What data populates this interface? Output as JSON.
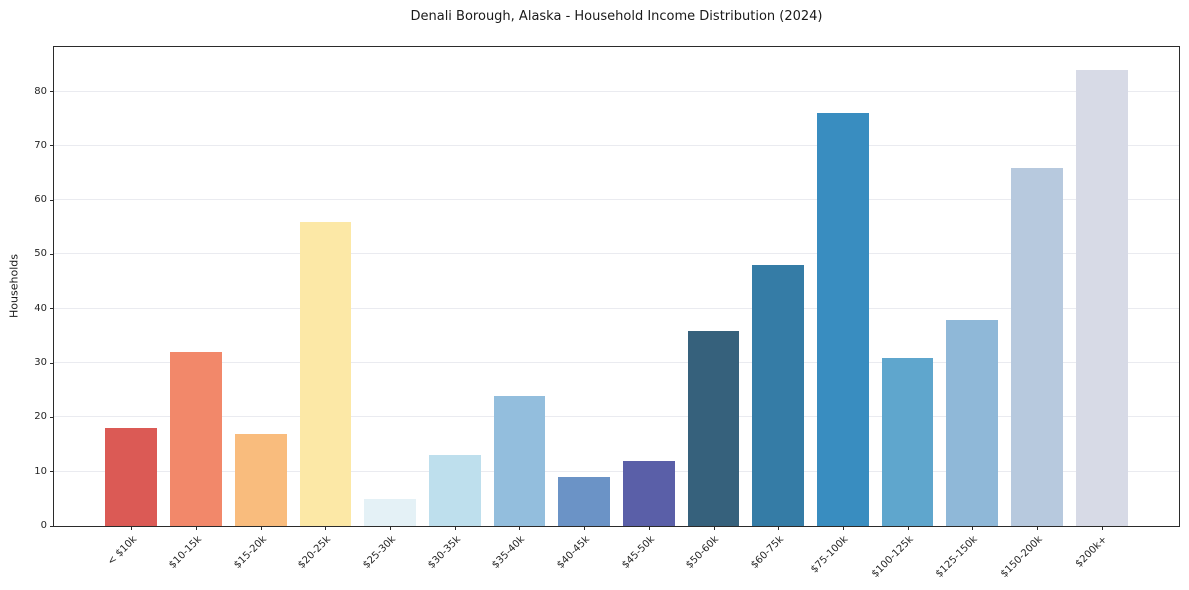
{
  "chart_data": {
    "type": "bar",
    "title": "Denali Borough, Alaska - Household Income Distribution (2024)",
    "xlabel": "",
    "ylabel": "Households",
    "categories": [
      "< $10k",
      "$10-15k",
      "$15-20k",
      "$20-25k",
      "$25-30k",
      "$30-35k",
      "$35-40k",
      "$40-45k",
      "$45-50k",
      "$50-60k",
      "$60-75k",
      "$75-100k",
      "$100-125k",
      "$125-150k",
      "$150-200k",
      "$200k+"
    ],
    "values": [
      18,
      32,
      17,
      56,
      5,
      13,
      24,
      9,
      12,
      36,
      48,
      76,
      31,
      38,
      66,
      84
    ],
    "bar_colors": [
      "#db5a55",
      "#f2886a",
      "#f9bc7d",
      "#fce8a6",
      "#e4f1f6",
      "#bedfed",
      "#93bedd",
      "#6b93c6",
      "#5a5fa8",
      "#36617c",
      "#357ca6",
      "#398dc0",
      "#5fa6cd",
      "#8fb8d8",
      "#b7c9de",
      "#d7dae6"
    ],
    "ylim": [
      0,
      88.2
    ],
    "yticks": [
      0,
      10,
      20,
      30,
      40,
      50,
      60,
      70,
      80
    ],
    "grid": "horizontal",
    "legend": "none",
    "background_color": "#ffffff",
    "gridline_color": "#eaebf0",
    "spine_color": "#2b2b2b",
    "text_color": "#1a1a1a"
  }
}
